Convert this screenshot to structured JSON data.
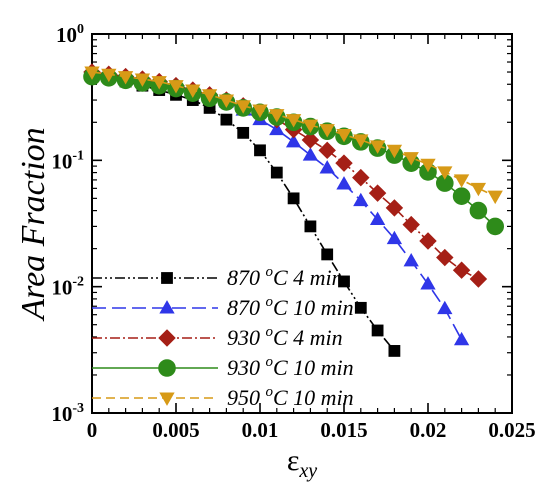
{
  "chart_data": {
    "type": "line",
    "title": "",
    "xlabel": "ε",
    "xlabel_sub": "xy",
    "ylabel": "Area Fraction",
    "xlim": [
      0,
      0.025
    ],
    "ylim": [
      0.001,
      1
    ],
    "yscale": "log",
    "grid": false,
    "legend_position": "bottom-left",
    "x_ticks": [
      "0",
      "0.005",
      "0.01",
      "0.015",
      "0.02",
      "0.025"
    ],
    "y_ticks": [
      {
        "base": "10",
        "exp": "0"
      },
      {
        "base": "10",
        "exp": "-1"
      },
      {
        "base": "10",
        "exp": "-2"
      },
      {
        "base": "10",
        "exp": "-3"
      }
    ],
    "series": [
      {
        "name": "870 °C 4 min",
        "legend": {
          "temp": "870",
          "unit": "o",
          "rest": "C 4 min"
        },
        "color": "#000000",
        "marker": "square",
        "dash": "10,3,2,3,2,3",
        "x": [
          0,
          0.001,
          0.002,
          0.003,
          0.004,
          0.005,
          0.006,
          0.007,
          0.008,
          0.009,
          0.01,
          0.011,
          0.012,
          0.013,
          0.014,
          0.015,
          0.016,
          0.017,
          0.018
        ],
        "y": [
          0.47,
          0.45,
          0.42,
          0.39,
          0.36,
          0.33,
          0.3,
          0.26,
          0.21,
          0.165,
          0.12,
          0.08,
          0.05,
          0.03,
          0.018,
          0.011,
          0.0068,
          0.0045,
          0.0031
        ]
      },
      {
        "name": "870 °C 10 min",
        "legend": {
          "temp": "870",
          "unit": "o",
          "rest": "C 10 min"
        },
        "color": "#2f36e8",
        "marker": "triangle-up",
        "dash": "14,6",
        "x": [
          0,
          0.001,
          0.002,
          0.003,
          0.004,
          0.005,
          0.006,
          0.007,
          0.008,
          0.009,
          0.01,
          0.011,
          0.012,
          0.013,
          0.014,
          0.015,
          0.016,
          0.017,
          0.018,
          0.019,
          0.02,
          0.021,
          0.022
        ],
        "y": [
          0.48,
          0.47,
          0.45,
          0.43,
          0.41,
          0.38,
          0.35,
          0.32,
          0.29,
          0.25,
          0.21,
          0.175,
          0.14,
          0.11,
          0.087,
          0.065,
          0.048,
          0.034,
          0.024,
          0.016,
          0.0105,
          0.0067,
          0.0038
        ]
      },
      {
        "name": "930 °C 4 min",
        "legend": {
          "temp": "930",
          "unit": "o",
          "rest": "C 4 min"
        },
        "color": "#a51f16",
        "marker": "diamond",
        "dash": "10,3,2,3",
        "x": [
          0,
          0.001,
          0.002,
          0.003,
          0.004,
          0.005,
          0.006,
          0.007,
          0.008,
          0.009,
          0.01,
          0.011,
          0.012,
          0.013,
          0.014,
          0.015,
          0.016,
          0.017,
          0.018,
          0.019,
          0.02,
          0.021,
          0.022,
          0.023
        ],
        "y": [
          0.5,
          0.48,
          0.46,
          0.44,
          0.42,
          0.39,
          0.36,
          0.33,
          0.3,
          0.27,
          0.24,
          0.21,
          0.175,
          0.145,
          0.12,
          0.095,
          0.073,
          0.055,
          0.042,
          0.031,
          0.023,
          0.017,
          0.0135,
          0.0115
        ]
      },
      {
        "name": "930 °C 10 min",
        "legend": {
          "temp": "930",
          "unit": "o",
          "rest": "C 10 min"
        },
        "color": "#2e8b1a",
        "marker": "circle",
        "dash": "",
        "x": [
          0,
          0.001,
          0.002,
          0.003,
          0.004,
          0.005,
          0.006,
          0.007,
          0.008,
          0.009,
          0.01,
          0.011,
          0.012,
          0.013,
          0.014,
          0.015,
          0.016,
          0.017,
          0.018,
          0.019,
          0.02,
          0.021,
          0.022,
          0.023,
          0.024
        ],
        "y": [
          0.46,
          0.45,
          0.43,
          0.41,
          0.39,
          0.37,
          0.34,
          0.31,
          0.29,
          0.26,
          0.24,
          0.22,
          0.2,
          0.185,
          0.17,
          0.155,
          0.14,
          0.125,
          0.11,
          0.095,
          0.081,
          0.066,
          0.052,
          0.04,
          0.03
        ]
      },
      {
        "name": "950 °C 10 min",
        "legend": {
          "temp": "950",
          "unit": "o",
          "rest": "C 10 min"
        },
        "color": "#d79a17",
        "marker": "triangle-down",
        "dash": "9,5",
        "x": [
          0,
          0.001,
          0.002,
          0.003,
          0.004,
          0.005,
          0.006,
          0.007,
          0.008,
          0.009,
          0.01,
          0.011,
          0.012,
          0.013,
          0.014,
          0.015,
          0.016,
          0.017,
          0.018,
          0.019,
          0.02,
          0.021,
          0.022,
          0.023,
          0.024
        ],
        "y": [
          0.5,
          0.48,
          0.46,
          0.44,
          0.42,
          0.39,
          0.36,
          0.33,
          0.3,
          0.27,
          0.25,
          0.23,
          0.21,
          0.19,
          0.175,
          0.16,
          0.145,
          0.13,
          0.12,
          0.105,
          0.093,
          0.081,
          0.07,
          0.06,
          0.052
        ]
      }
    ]
  }
}
